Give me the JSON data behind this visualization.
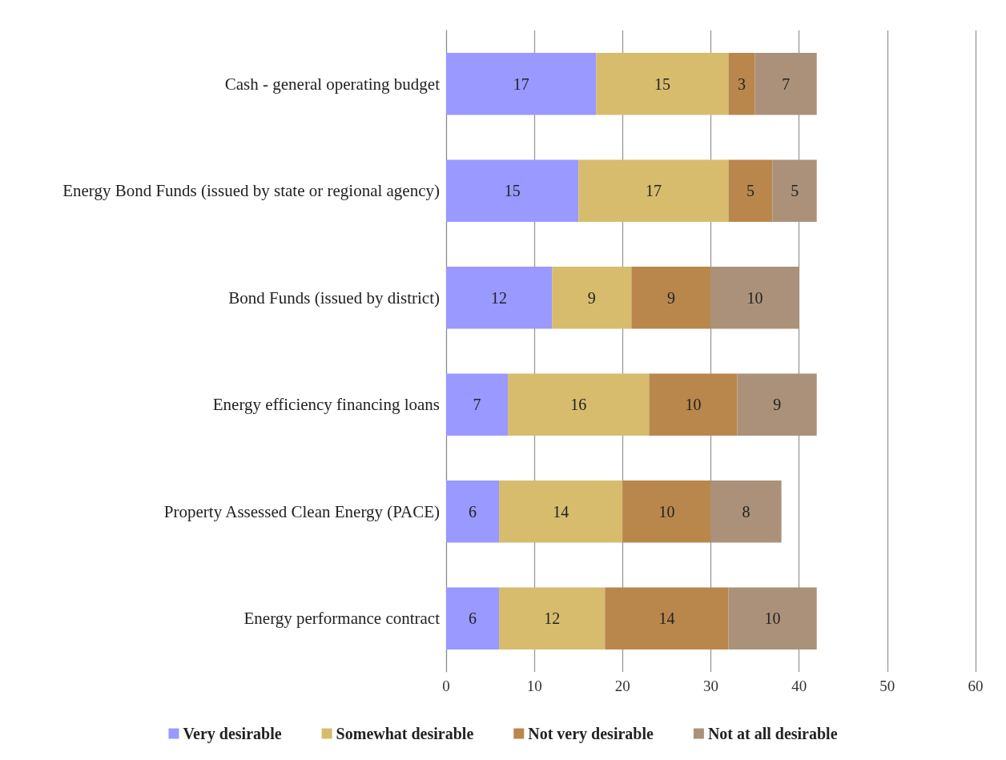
{
  "chart_data": {
    "type": "bar",
    "orientation": "horizontal",
    "stacked": true,
    "data_labels": true,
    "grid": "x",
    "legend": "bottom",
    "categories": [
      "Cash - general operating budget",
      "Energy Bond Funds (issued by state or regional agency)",
      "Bond Funds (issued by district)",
      "Energy efficiency financing loans",
      "Property Assessed Clean Energy (PACE)",
      "Energy performance contract"
    ],
    "series": [
      {
        "name": "Very desirable",
        "color": "#9999ff",
        "values": [
          17,
          15,
          12,
          7,
          6,
          6
        ]
      },
      {
        "name": "Somewhat desirable",
        "color": "#d6bc6c",
        "values": [
          15,
          17,
          9,
          16,
          14,
          12
        ]
      },
      {
        "name": "Not very desirable",
        "color": "#b9874c",
        "values": [
          3,
          5,
          9,
          10,
          10,
          14
        ]
      },
      {
        "name": "Not at all desirable",
        "color": "#ab9179",
        "values": [
          7,
          5,
          10,
          9,
          8,
          10
        ]
      }
    ],
    "xlim": [
      0,
      60
    ],
    "xticks": [
      0,
      10,
      20,
      30,
      40,
      50,
      60
    ]
  }
}
